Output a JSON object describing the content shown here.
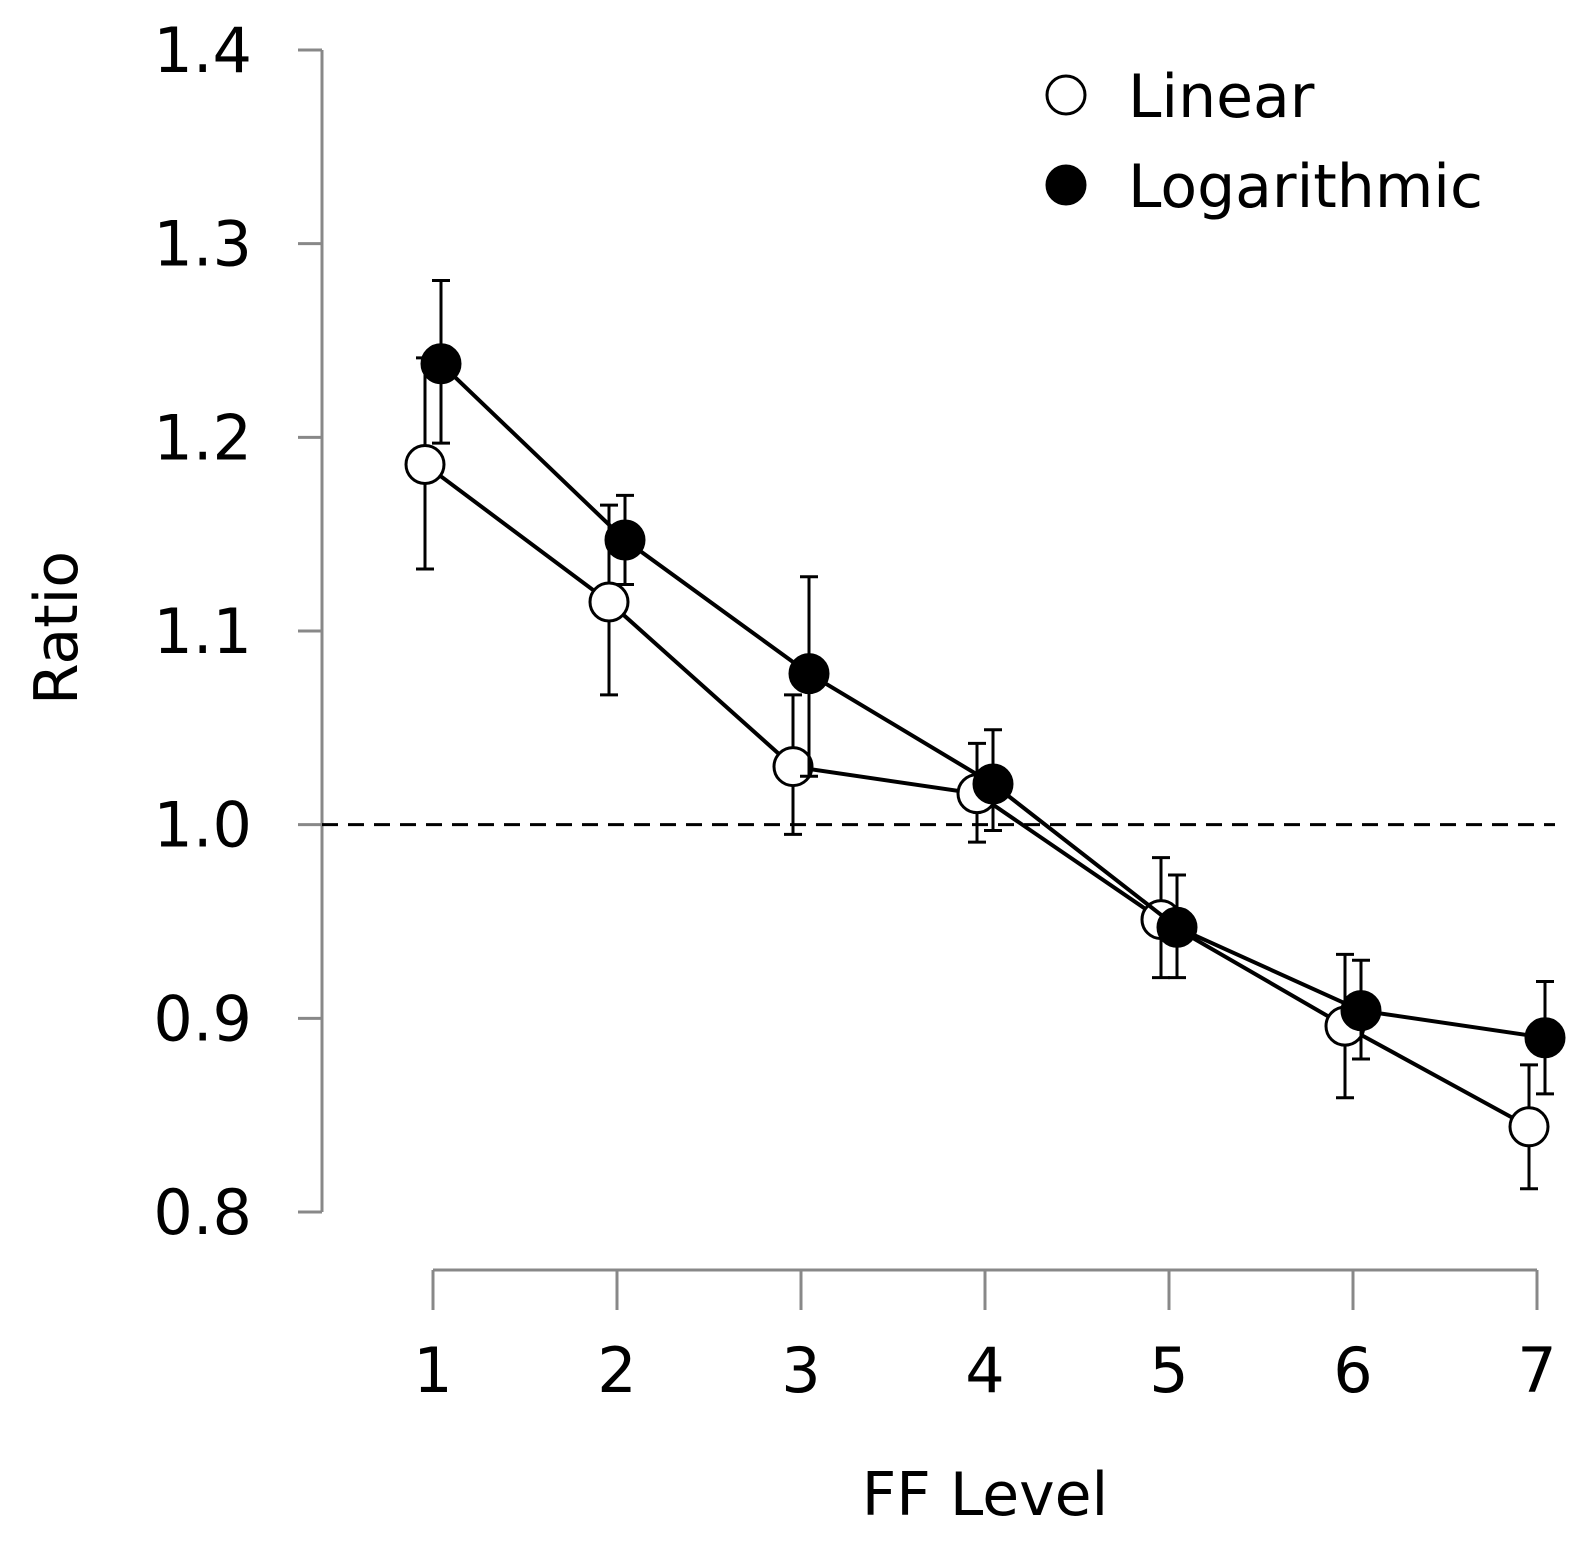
{
  "chart_data": {
    "type": "line",
    "title": "",
    "xlabel": "FF Level",
    "ylabel": "Ratio",
    "x": [
      1,
      2,
      3,
      4,
      5,
      6,
      7
    ],
    "x_tick_labels": [
      "1",
      "2",
      "3",
      "4",
      "5",
      "6",
      "7"
    ],
    "ylim": [
      0.8,
      1.4
    ],
    "y_ticks": [
      0.8,
      0.9,
      1.0,
      1.1,
      1.2,
      1.3,
      1.4
    ],
    "y_tick_labels": [
      "0.8",
      "0.9",
      "1.0",
      "1.1",
      "1.2",
      "1.3",
      "1.4"
    ],
    "reference_line": {
      "y": 1.0,
      "style": "dashed"
    },
    "legend_position": "top-right",
    "series": [
      {
        "name": "Linear",
        "marker": "open-circle",
        "values": [
          1.186,
          1.115,
          1.03,
          1.016,
          0.951,
          0.896,
          0.844
        ],
        "err_lower": [
          1.132,
          1.067,
          0.995,
          0.991,
          0.921,
          0.859,
          0.812
        ],
        "err_upper": [
          1.241,
          1.165,
          1.067,
          1.042,
          0.983,
          0.933,
          0.876
        ]
      },
      {
        "name": "Logarithmic",
        "marker": "filled-circle",
        "values": [
          1.238,
          1.147,
          1.078,
          1.021,
          0.947,
          0.904,
          0.89
        ],
        "err_lower": [
          1.197,
          1.124,
          1.025,
          0.997,
          0.921,
          0.879,
          0.861
        ],
        "err_upper": [
          1.281,
          1.17,
          1.128,
          1.049,
          0.974,
          0.93,
          0.919
        ]
      }
    ]
  }
}
